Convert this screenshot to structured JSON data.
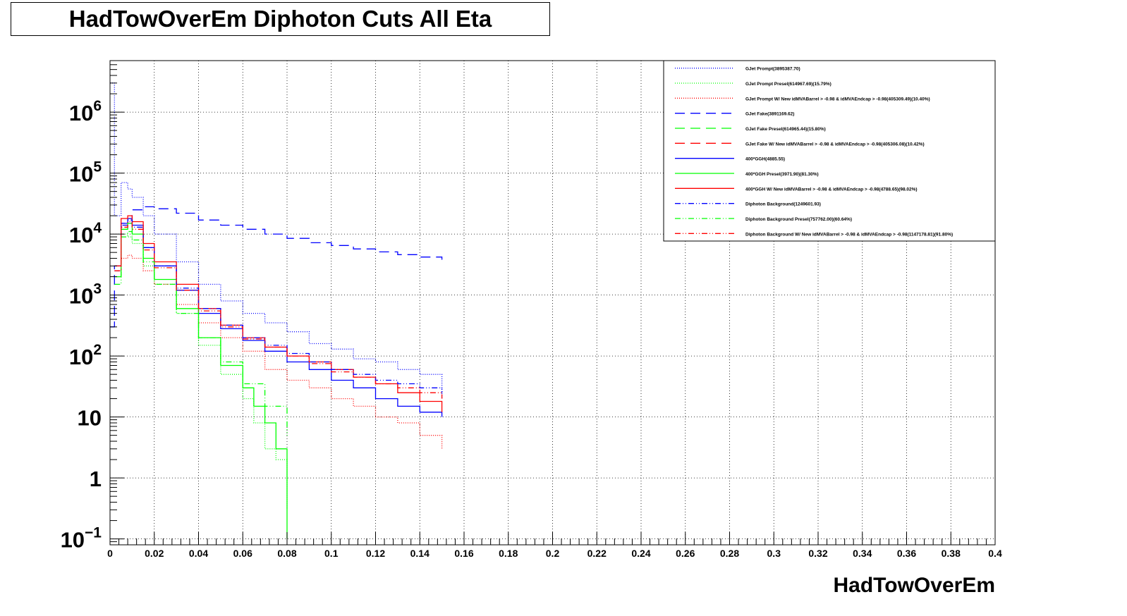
{
  "chart_data": {
    "type": "line",
    "title": "HadTowOverEm Diphoton Cuts All Eta",
    "xlabel": "HadTowOverEm",
    "ylabel": "",
    "xlim": [
      0,
      0.4
    ],
    "ylim": [
      0.08,
      7000000
    ],
    "yscale": "log",
    "grid": true,
    "legend_position": "top-right",
    "x_tick_labels": [
      "0",
      "0.02",
      "0.04",
      "0.06",
      "0.08",
      "0.1",
      "0.12",
      "0.14",
      "0.16",
      "0.18",
      "0.2",
      "0.22",
      "0.24",
      "0.26",
      "0.28",
      "0.3",
      "0.32",
      "0.34",
      "0.36",
      "0.38",
      "0.4"
    ],
    "y_tick_labels": [
      {
        "value": 0.1,
        "base": "10",
        "exp": "−1"
      },
      {
        "value": 1,
        "base": "1",
        "exp": ""
      },
      {
        "value": 10,
        "base": "10",
        "exp": ""
      },
      {
        "value": 100,
        "base": "10",
        "exp": "2"
      },
      {
        "value": 1000,
        "base": "10",
        "exp": "3"
      },
      {
        "value": 10000,
        "base": "10",
        "exp": "4"
      },
      {
        "value": 100000,
        "base": "10",
        "exp": "5"
      },
      {
        "value": 1000000,
        "base": "10",
        "exp": "6"
      }
    ],
    "series": [
      {
        "name": "GJet Prompt(3895387.70)",
        "color": "#0000ff",
        "dash": "dotted",
        "x": [
          0,
          0.002,
          0.005,
          0.008,
          0.01,
          0.015,
          0.02,
          0.03,
          0.04,
          0.05,
          0.06,
          0.07,
          0.08,
          0.09,
          0.1,
          0.11,
          0.12,
          0.13,
          0.14,
          0.15
        ],
        "y": [
          3000000,
          20000,
          70000,
          55000,
          40000,
          20000,
          10000,
          3500,
          1500,
          800,
          500,
          350,
          250,
          160,
          130,
          90,
          80,
          60,
          50,
          20
        ]
      },
      {
        "name": "GJet Prompt Presel(614967.69)(15.79%)",
        "color": "#00ff00",
        "dash": "dotted",
        "x": [
          0.002,
          0.005,
          0.008,
          0.01,
          0.015,
          0.02,
          0.03,
          0.04,
          0.05,
          0.06,
          0.065,
          0.07,
          0.075,
          0.08
        ],
        "y": [
          3000,
          10000,
          9000,
          7000,
          3000,
          1500,
          500,
          150,
          50,
          20,
          8,
          3,
          2,
          0.3
        ]
      },
      {
        "name": "GJet Prompt W/ New idMVABarrel > -0.98 & idMVAEndcap > -0.98(405309.49)(10.40%)",
        "color": "#ff0000",
        "dash": "dotted",
        "x": [
          0.002,
          0.005,
          0.008,
          0.01,
          0.015,
          0.02,
          0.03,
          0.04,
          0.05,
          0.06,
          0.07,
          0.08,
          0.09,
          0.1,
          0.11,
          0.12,
          0.13,
          0.14,
          0.15
        ],
        "y": [
          2000,
          4000,
          4500,
          4000,
          2500,
          1500,
          700,
          350,
          200,
          120,
          60,
          40,
          30,
          20,
          15,
          10,
          8,
          5,
          3
        ]
      },
      {
        "name": "GJet Fake(3891169.62)",
        "color": "#0000ff",
        "dash": "longdash",
        "x": [
          0,
          0.002,
          0.005,
          0.01,
          0.015,
          0.02,
          0.03,
          0.04,
          0.05,
          0.06,
          0.07,
          0.08,
          0.09,
          0.1,
          0.11,
          0.12,
          0.13,
          0.14,
          0.15
        ],
        "y": [
          300,
          3000,
          15000,
          25000,
          28000,
          26000,
          22000,
          17000,
          14000,
          12000,
          10000,
          8500,
          7200,
          6500,
          5700,
          5100,
          4600,
          4200,
          3800
        ]
      },
      {
        "name": "GJet Fake Presel(614965.44)(15.80%)",
        "color": "#00ff00",
        "dash": "longdash",
        "x": [],
        "y": []
      },
      {
        "name": "GJet Fake W/ New idMVABarrel > -0.98 & idMVAEndcap > -0.98(405306.08)(10.42%)",
        "color": "#ff0000",
        "dash": "longdash",
        "x": [],
        "y": []
      },
      {
        "name": "400*GGH(4885.55)",
        "color": "#0000ff",
        "dash": "solid",
        "x": [
          0.002,
          0.005,
          0.008,
          0.01,
          0.015,
          0.02,
          0.03,
          0.04,
          0.05,
          0.06,
          0.07,
          0.08,
          0.09,
          0.1,
          0.11,
          0.12,
          0.13,
          0.14,
          0.15
        ],
        "y": [
          3000,
          15000,
          18000,
          14000,
          6000,
          3000,
          1200,
          500,
          280,
          180,
          120,
          80,
          60,
          40,
          30,
          20,
          15,
          12,
          10
        ]
      },
      {
        "name": "400*GGH Presel(3971.90)(81.30%)",
        "color": "#00ff00",
        "dash": "solid",
        "x": [
          0.002,
          0.005,
          0.008,
          0.01,
          0.015,
          0.02,
          0.03,
          0.04,
          0.05,
          0.06,
          0.065,
          0.07,
          0.075,
          0.08
        ],
        "y": [
          2000,
          12000,
          15000,
          10000,
          4000,
          1800,
          600,
          200,
          70,
          30,
          15,
          8,
          3,
          0.1
        ]
      },
      {
        "name": "400*GGH W/ New idMVABarrel > -0.98 & idMVAEndcap > -0.98(4788.65)(98.02%)",
        "color": "#ff0000",
        "dash": "solid",
        "x": [
          0.002,
          0.005,
          0.008,
          0.01,
          0.015,
          0.02,
          0.03,
          0.04,
          0.05,
          0.06,
          0.07,
          0.08,
          0.09,
          0.1,
          0.11,
          0.12,
          0.13,
          0.14,
          0.15
        ],
        "y": [
          3000,
          18000,
          20000,
          16000,
          7000,
          3500,
          1500,
          600,
          320,
          200,
          140,
          100,
          80,
          60,
          45,
          35,
          25,
          18,
          12
        ]
      },
      {
        "name": "Diphoton Background(1249601.93)",
        "color": "#0000ff",
        "dash": "dashdotdot",
        "x": [
          0.002,
          0.005,
          0.008,
          0.01,
          0.015,
          0.02,
          0.03,
          0.04,
          0.05,
          0.06,
          0.07,
          0.08,
          0.09,
          0.1,
          0.11,
          0.12,
          0.13,
          0.14,
          0.15
        ],
        "y": [
          2500,
          14000,
          17000,
          13000,
          6000,
          3000,
          1300,
          600,
          320,
          200,
          150,
          110,
          80,
          60,
          50,
          40,
          35,
          30,
          25
        ]
      },
      {
        "name": "Diphoton Background Presel(757762.00)(60.64%)",
        "color": "#00ff00",
        "dash": "dashdotdot",
        "x": [
          0.002,
          0.005,
          0.008,
          0.01,
          0.015,
          0.02,
          0.03,
          0.04,
          0.05,
          0.06,
          0.07,
          0.08
        ],
        "y": [
          1500,
          9000,
          11000,
          8000,
          3500,
          1500,
          500,
          200,
          80,
          35,
          15,
          5
        ]
      },
      {
        "name": "Diphoton Background W/ New idMVABarrel > -0.98 & idMVAEndcap > -0.98(1147178.81)(91.80%)",
        "color": "#ff0000",
        "dash": "dashdotdot",
        "x": [
          0.002,
          0.005,
          0.008,
          0.01,
          0.015,
          0.02,
          0.03,
          0.04,
          0.05,
          0.06,
          0.07,
          0.08,
          0.09,
          0.1,
          0.11,
          0.12,
          0.13,
          0.14,
          0.15
        ],
        "y": [
          2500,
          13000,
          16000,
          12000,
          5500,
          2800,
          1200,
          550,
          300,
          190,
          140,
          100,
          75,
          55,
          45,
          35,
          30,
          25,
          20
        ]
      }
    ]
  }
}
